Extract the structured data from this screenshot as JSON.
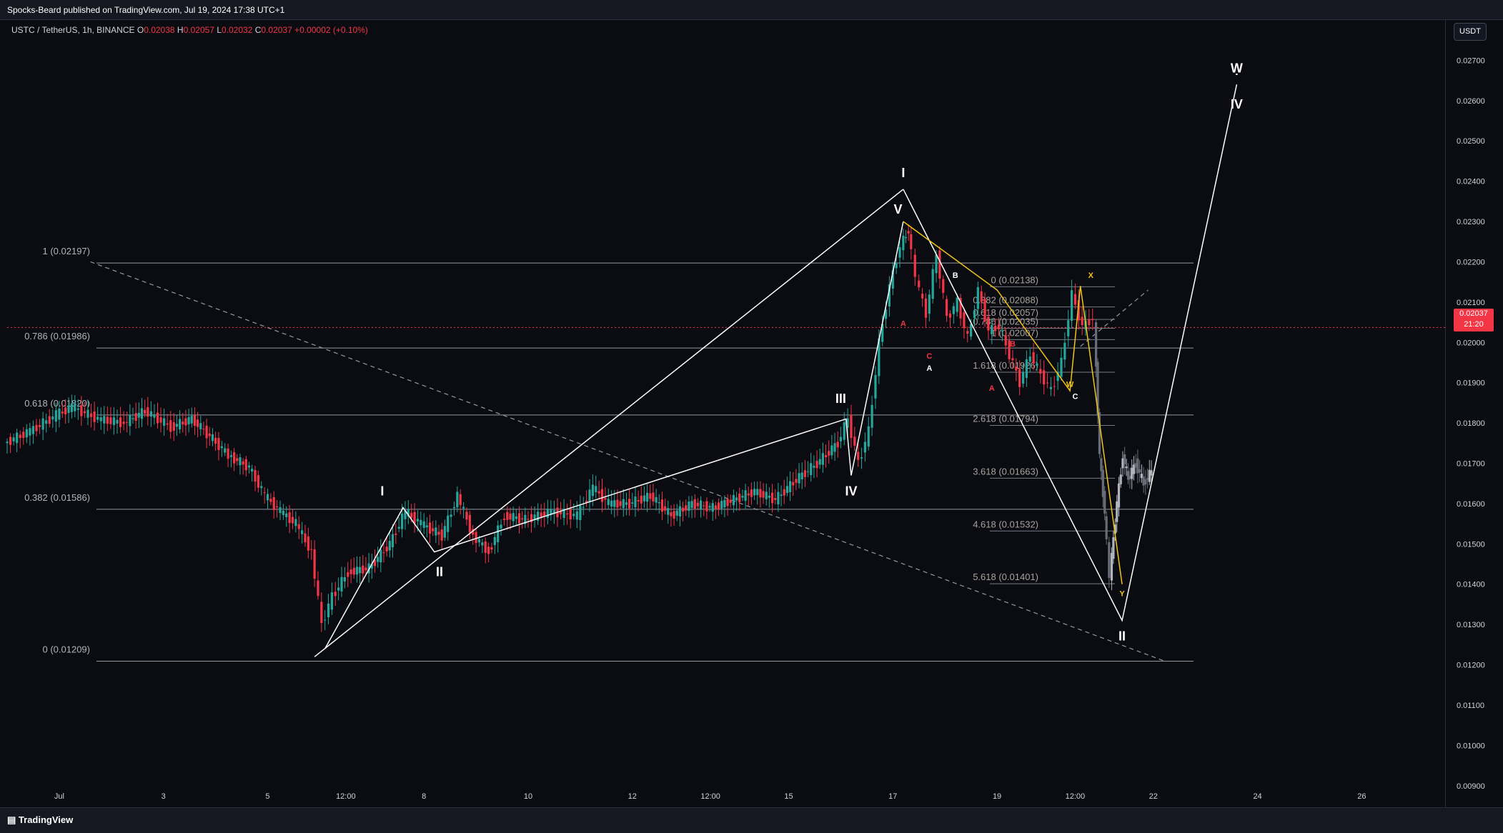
{
  "header": {
    "publisher": "Spocks-Beard published on TradingView.com, Jul 19, 2024 17:38 UTC+1"
  },
  "symbol_bar": {
    "symbol": "USTC / TetherUS, 1h, BINANCE",
    "o_label": "O",
    "open": "0.02038",
    "h_label": "H",
    "high": "0.02057",
    "l_label": "L",
    "low": "0.02032",
    "c_label": "C",
    "close": "0.02037",
    "change": "+0.00002 (+0.10%)"
  },
  "currency_button": "USDT",
  "last_price": {
    "value": "0.02037",
    "countdown": "21:20"
  },
  "footer": {
    "brand": "TradingView"
  },
  "colors": {
    "up": "#26a69a",
    "down": "#f23645",
    "accent_yellow": "#f0c419",
    "line": "#ffffff",
    "background": "#0b0c12"
  },
  "chart_data": {
    "type": "candlestick",
    "title": "USTC / TetherUS, 1h, BINANCE",
    "ylim": [
      0.0085,
      0.028
    ],
    "y_ticks": [
      "0.02700",
      "0.02600",
      "0.02500",
      "0.02400",
      "0.02300",
      "0.02200",
      "0.02100",
      "0.02000",
      "0.01900",
      "0.01800",
      "0.01700",
      "0.01600",
      "0.01500",
      "0.01400",
      "0.01300",
      "0.01200",
      "0.01100",
      "0.01000",
      "0.00900"
    ],
    "x_ticks": [
      {
        "label": "Jul",
        "t": 0
      },
      {
        "label": "3",
        "t": 2
      },
      {
        "label": "5",
        "t": 4
      },
      {
        "label": "12:00",
        "t": 5.5
      },
      {
        "label": "8",
        "t": 7
      },
      {
        "label": "10",
        "t": 9
      },
      {
        "label": "12",
        "t": 11
      },
      {
        "label": "12:00",
        "t": 12.5
      },
      {
        "label": "15",
        "t": 14
      },
      {
        "label": "17",
        "t": 16
      },
      {
        "label": "19",
        "t": 18
      },
      {
        "label": "12:00",
        "t": 19.5
      },
      {
        "label": "22",
        "t": 21
      },
      {
        "label": "24",
        "t": 23
      },
      {
        "label": "26",
        "t": 25
      }
    ],
    "t_range": [
      -1.0,
      26.6
    ],
    "price_path": [
      [
        -1.0,
        0.0175
      ],
      [
        -0.5,
        0.0178
      ],
      [
        0,
        0.0182
      ],
      [
        0.3,
        0.0184
      ],
      [
        0.8,
        0.0181
      ],
      [
        1.3,
        0.018
      ],
      [
        1.7,
        0.0183
      ],
      [
        2.2,
        0.0179
      ],
      [
        2.6,
        0.0181
      ],
      [
        3.0,
        0.0176
      ],
      [
        3.3,
        0.0172
      ],
      [
        3.7,
        0.0169
      ],
      [
        4.0,
        0.0162
      ],
      [
        4.3,
        0.0158
      ],
      [
        4.6,
        0.0155
      ],
      [
        4.9,
        0.0148
      ],
      [
        5.1,
        0.013
      ],
      [
        5.3,
        0.0137
      ],
      [
        5.6,
        0.0143
      ],
      [
        6.0,
        0.0144
      ],
      [
        6.4,
        0.015
      ],
      [
        6.7,
        0.0158
      ],
      [
        7.0,
        0.0155
      ],
      [
        7.4,
        0.0152
      ],
      [
        7.7,
        0.0162
      ],
      [
        8.0,
        0.0152
      ],
      [
        8.3,
        0.0148
      ],
      [
        8.6,
        0.0157
      ],
      [
        9.0,
        0.0156
      ],
      [
        9.5,
        0.0158
      ],
      [
        10.0,
        0.0157
      ],
      [
        10.3,
        0.0164
      ],
      [
        10.6,
        0.016
      ],
      [
        11.0,
        0.016
      ],
      [
        11.4,
        0.0162
      ],
      [
        11.8,
        0.0157
      ],
      [
        12.2,
        0.016
      ],
      [
        12.6,
        0.0159
      ],
      [
        13.0,
        0.0161
      ],
      [
        13.4,
        0.0163
      ],
      [
        13.8,
        0.0161
      ],
      [
        14.2,
        0.0166
      ],
      [
        14.6,
        0.017
      ],
      [
        15.0,
        0.0175
      ],
      [
        15.2,
        0.0181
      ],
      [
        15.4,
        0.017
      ],
      [
        15.6,
        0.0178
      ],
      [
        15.8,
        0.02
      ],
      [
        16.0,
        0.0214
      ],
      [
        16.2,
        0.0224
      ],
      [
        16.35,
        0.0228
      ],
      [
        16.5,
        0.0216
      ],
      [
        16.7,
        0.0207
      ],
      [
        16.9,
        0.0222
      ],
      [
        17.1,
        0.0206
      ],
      [
        17.3,
        0.021
      ],
      [
        17.5,
        0.0201
      ],
      [
        17.7,
        0.0213
      ],
      [
        17.9,
        0.0203
      ],
      [
        18.1,
        0.0204
      ],
      [
        18.3,
        0.0197
      ],
      [
        18.5,
        0.019
      ],
      [
        18.7,
        0.0197
      ],
      [
        18.9,
        0.0192
      ],
      [
        19.1,
        0.0188
      ],
      [
        19.3,
        0.0195
      ],
      [
        19.5,
        0.0212
      ],
      [
        19.7,
        0.0204
      ],
      [
        19.9,
        0.0206
      ]
    ],
    "projection_path": [
      [
        19.9,
        0.0205
      ],
      [
        20.0,
        0.0172
      ],
      [
        20.1,
        0.0158
      ],
      [
        20.2,
        0.0142
      ],
      [
        20.3,
        0.0156
      ],
      [
        20.45,
        0.0172
      ],
      [
        20.55,
        0.0166
      ],
      [
        20.7,
        0.017
      ],
      [
        20.85,
        0.0165
      ],
      [
        21.0,
        0.0168
      ]
    ],
    "horizontal_levels": [
      {
        "label": "1 (0.02197)",
        "price": 0.02197
      },
      {
        "label": "0.786 (0.01986)",
        "price": 0.01986
      },
      {
        "label": "0.618 (0.01820)",
        "price": 0.0182
      },
      {
        "label": "0.382 (0.01586)",
        "price": 0.01586
      },
      {
        "label": "0 (0.01209)",
        "price": 0.01209
      }
    ],
    "fib_extensions": [
      {
        "label": "0 (0.02138)",
        "price": 0.02138
      },
      {
        "label": "0.382 (0.02088)",
        "price": 0.02088
      },
      {
        "label": "0.618 (0.02057)",
        "price": 0.02057
      },
      {
        "label": "0.786 (0.02035)",
        "price": 0.02035
      },
      {
        "label": "1 (0.02007)",
        "price": 0.02007
      },
      {
        "label": "1.618 (0.01926)",
        "price": 0.01926
      },
      {
        "label": "2.618 (0.01794)",
        "price": 0.01794
      },
      {
        "label": "3.618 (0.01663)",
        "price": 0.01663
      },
      {
        "label": "4.618 (0.01532)",
        "price": 0.01532
      },
      {
        "label": "5.618 (0.01401)",
        "price": 0.01401
      }
    ],
    "wave_lines": [
      {
        "points": [
          [
            5.1,
            0.0124
          ],
          [
            6.6,
            0.0159
          ],
          [
            7.2,
            0.0148
          ],
          [
            15.1,
            0.0181
          ],
          [
            15.2,
            0.0167
          ],
          [
            16.2,
            0.023
          ]
        ],
        "color": "white"
      },
      {
        "points": [
          [
            4.9,
            0.0122
          ],
          [
            16.2,
            0.0238
          ]
        ],
        "color": "white"
      },
      {
        "points": [
          [
            16.2,
            0.0238
          ],
          [
            20.4,
            0.0131
          ],
          [
            22.6,
            0.0264
          ]
        ],
        "color": "white"
      },
      {
        "points": [
          [
            16.2,
            0.023
          ],
          [
            18.0,
            0.0213
          ],
          [
            19.4,
            0.0188
          ],
          [
            19.6,
            0.0214
          ],
          [
            20.4,
            0.014
          ]
        ],
        "color": "yellow"
      }
    ],
    "dashed_lines": [
      {
        "points": [
          [
            0.6,
            0.022
          ],
          [
            21.2,
            0.0121
          ]
        ]
      },
      {
        "points": [
          [
            19.6,
            0.0199
          ],
          [
            20.9,
            0.0213
          ]
        ]
      }
    ],
    "wave_labels": [
      {
        "text": "I",
        "t": 6.2,
        "p": 0.0162,
        "color": "white"
      },
      {
        "text": "II",
        "t": 7.3,
        "p": 0.0142,
        "color": "white"
      },
      {
        "text": "III",
        "t": 15.0,
        "p": 0.0185,
        "color": "white"
      },
      {
        "text": "IV",
        "t": 15.2,
        "p": 0.0162,
        "color": "white"
      },
      {
        "text": "V",
        "t": 16.1,
        "p": 0.0232,
        "color": "white"
      },
      {
        "text": "I",
        "t": 16.2,
        "p": 0.0241,
        "color": "white"
      },
      {
        "text": "II",
        "t": 20.4,
        "p": 0.0126,
        "color": "white"
      },
      {
        "text": "IV",
        "t": 22.6,
        "p": 0.0258,
        "color": "white"
      },
      {
        "text": "Ẉ",
        "t": 22.6,
        "p": 0.0267,
        "color": "white"
      },
      {
        "text": "A",
        "t": 16.7,
        "p": 0.0193,
        "color": "white"
      },
      {
        "text": "B",
        "t": 17.2,
        "p": 0.0216,
        "color": "white"
      },
      {
        "text": "C",
        "t": 19.5,
        "p": 0.0186,
        "color": "white"
      },
      {
        "text": "X",
        "t": 19.8,
        "p": 0.0216,
        "color": "yellow"
      },
      {
        "text": "W",
        "t": 19.4,
        "p": 0.0189,
        "color": "yellow"
      },
      {
        "text": "Y",
        "t": 20.4,
        "p": 0.0137,
        "color": "yellow"
      },
      {
        "text": "A",
        "t": 16.2,
        "p": 0.0204,
        "color": "red"
      },
      {
        "text": "C",
        "t": 16.7,
        "p": 0.0196,
        "color": "red"
      },
      {
        "text": "B",
        "t": 18.3,
        "p": 0.0199,
        "color": "red"
      },
      {
        "text": "A",
        "t": 17.9,
        "p": 0.0188,
        "color": "red"
      }
    ]
  }
}
